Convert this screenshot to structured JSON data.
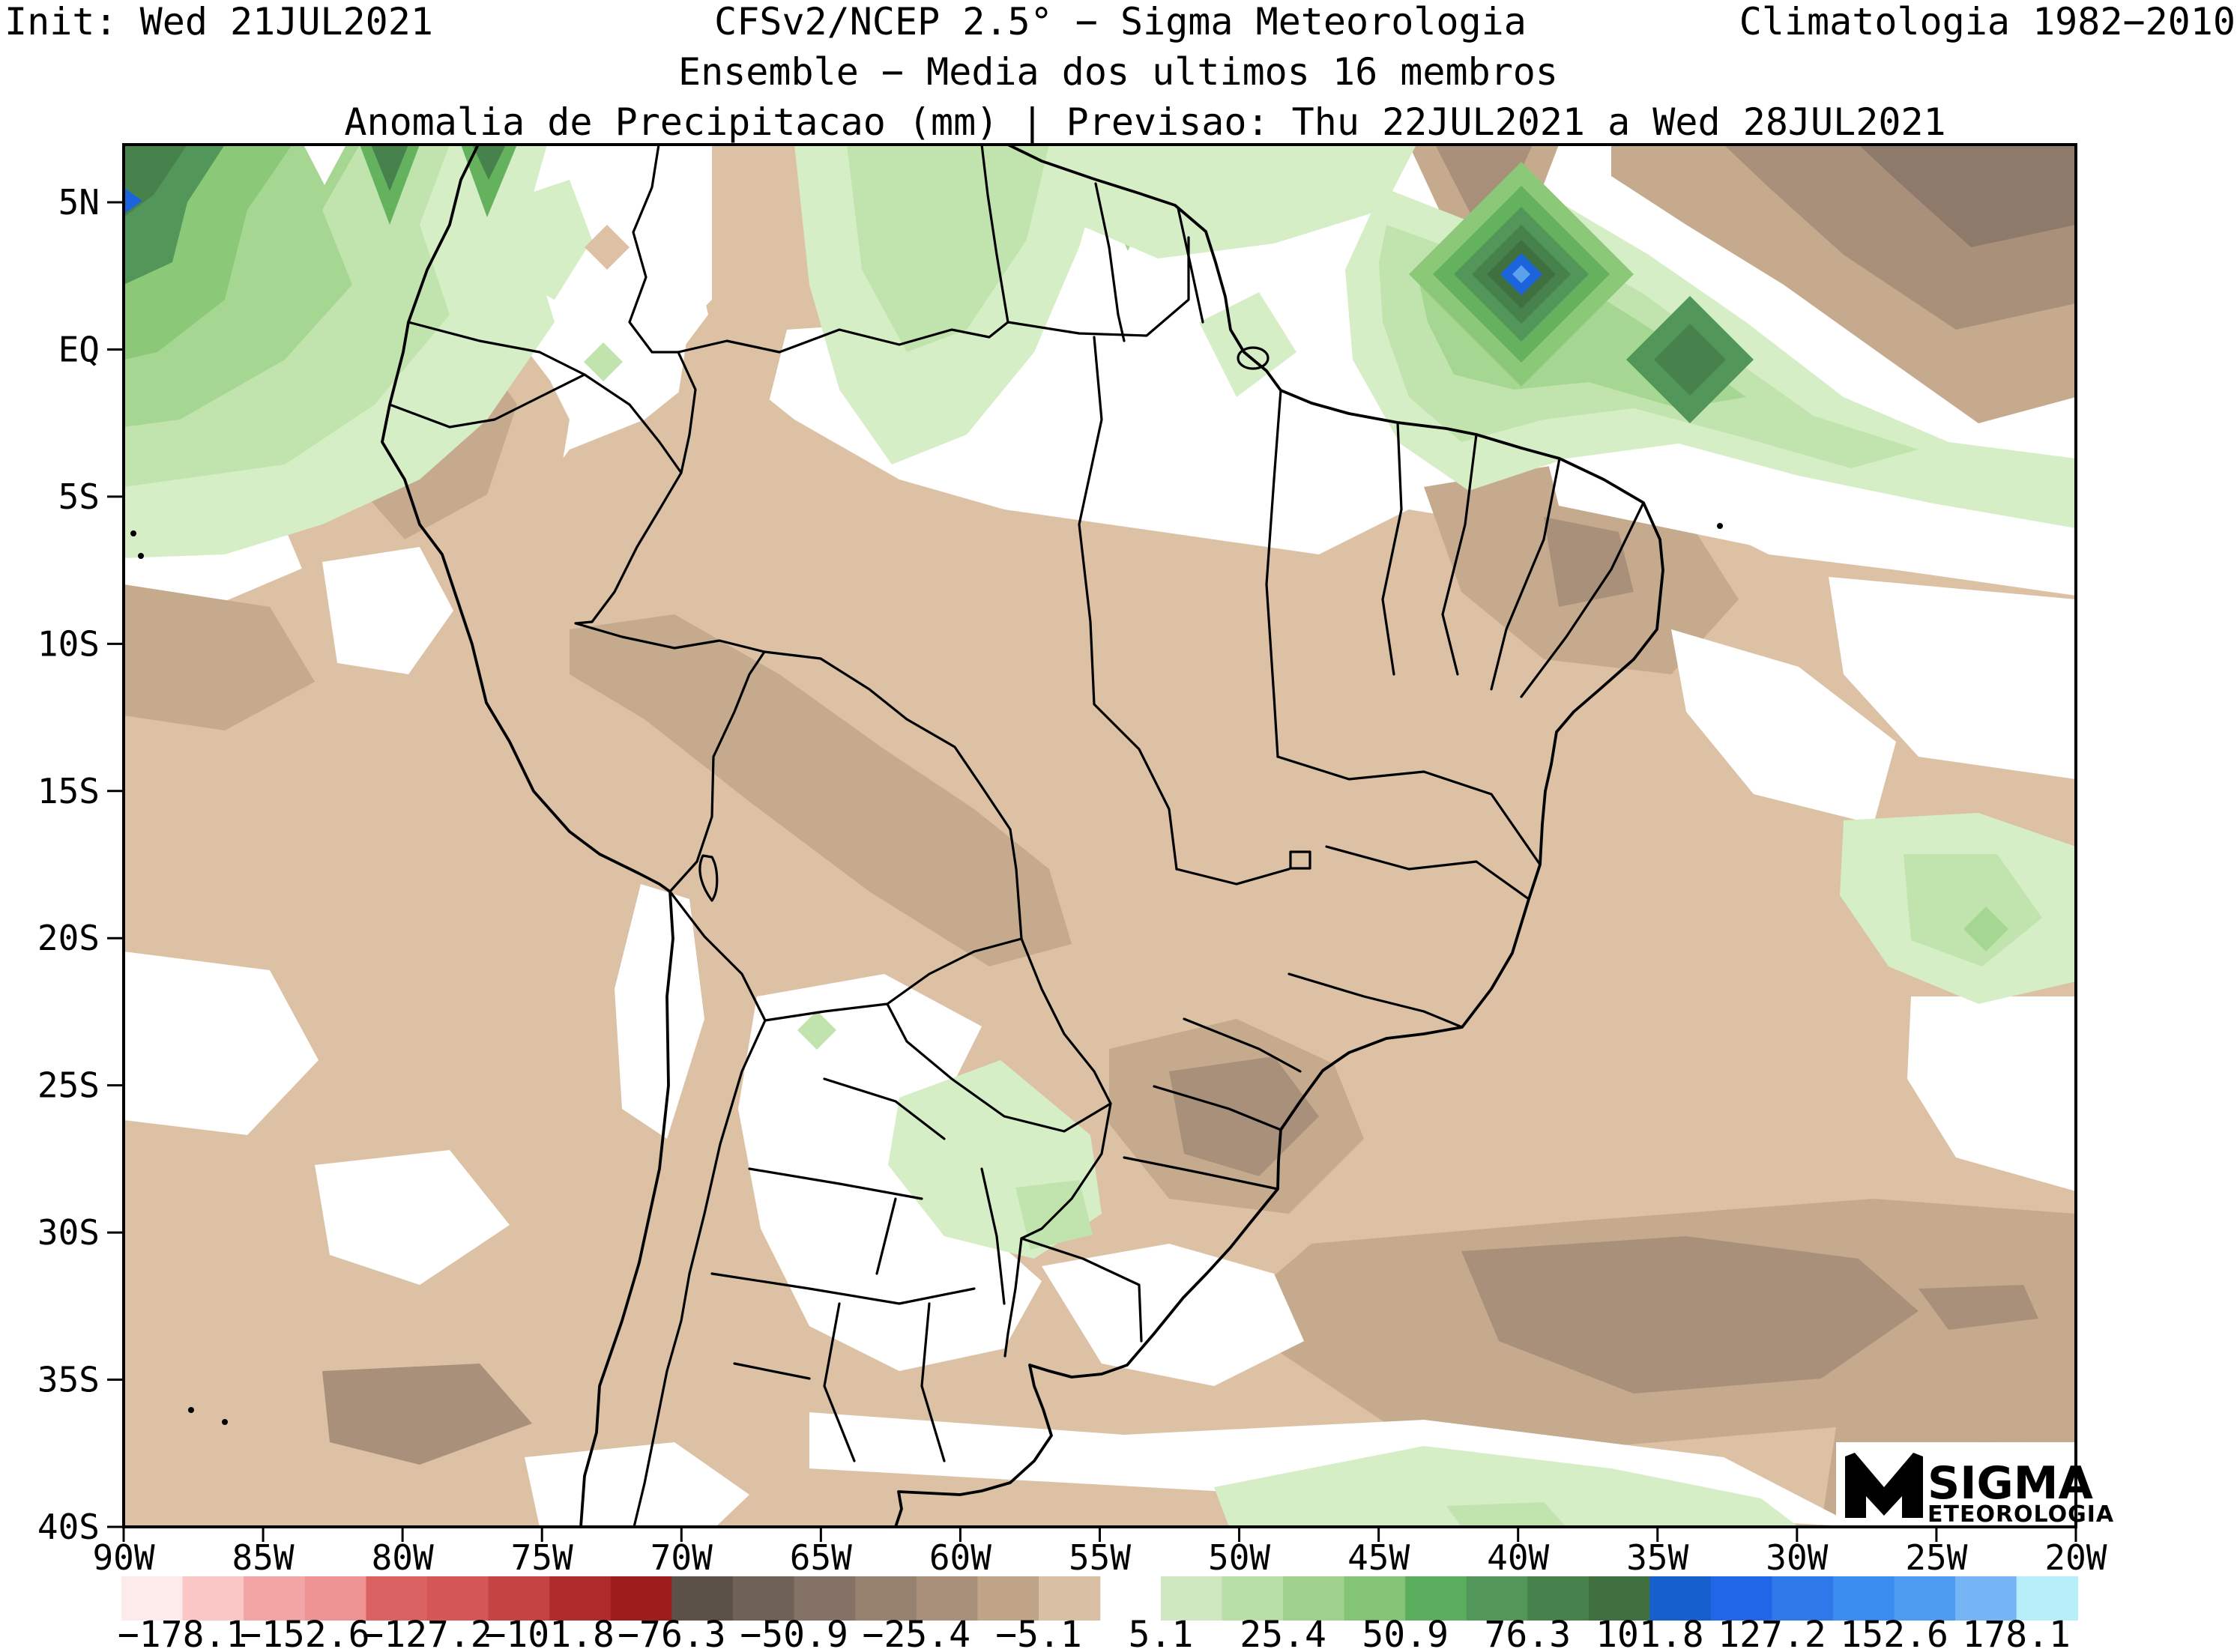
{
  "header": {
    "init_label": "Init: Wed 21JUL2021",
    "model_label": "CFSv2/NCEP 2.5° − Sigma Meteorologia",
    "climatology_label": "Climatologia 1982−2010",
    "ensemble_label": "Ensemble − Media dos ultimos 16 membros",
    "variable_label": "Anomalia de Precipitacao (mm) | Previsao: Thu 22JUL2021 a Wed 28JUL2021"
  },
  "axes": {
    "lat_ticks": [
      "5N",
      "EQ",
      "5S",
      "10S",
      "15S",
      "20S",
      "25S",
      "30S",
      "35S",
      "40S"
    ],
    "lon_ticks": [
      "90W",
      "85W",
      "80W",
      "75W",
      "70W",
      "65W",
      "60W",
      "55W",
      "50W",
      "45W",
      "40W",
      "35W",
      "30W",
      "25W",
      "20W"
    ]
  },
  "colorbar": {
    "units": "mm",
    "negative": {
      "segment_colors": [
        "#fdeaea",
        "#fbc6c6",
        "#f3a4a4",
        "#ee9393",
        "#db6262",
        "#d45656",
        "#c64343",
        "#b02b2b",
        "#9d1d1d",
        "#5c5148",
        "#6f6156",
        "#837265",
        "#97816f",
        "#a8907b",
        "#c0a488",
        "#d9bfa3"
      ],
      "edge_labels": [
        "−178.1",
        "−152.6",
        "−127.2",
        "−101.8",
        "−76.3",
        "−50.9",
        "−25.4",
        "−5.1"
      ]
    },
    "positive": {
      "segment_colors": [
        "#cfe8c0",
        "#b9dfa8",
        "#9fd18c",
        "#84c476",
        "#5bae5e",
        "#529659",
        "#47824c",
        "#40703f",
        "#1560cd",
        "#2066e6",
        "#2e79ea",
        "#3c8df0",
        "#4d9cf2",
        "#76b5f5",
        "#b6eff9"
      ],
      "edge_labels": [
        "5.1",
        "25.4",
        "50.9",
        "76.3",
        "101.8",
        "127.2",
        "152.6",
        "178.1"
      ]
    }
  },
  "logo": {
    "monogram": "M",
    "line1": "SIGMA",
    "line2": "ETEOROLOGIA"
  },
  "palette": {
    "tan_light": "#dcc1a5",
    "tan_mid": "#c5aa8e",
    "brown_gray": "#a8907b",
    "brown_dark": "#8d7a6a",
    "green_0": "#d6eec6",
    "green_1": "#c1e4ae",
    "green_2": "#a6d792",
    "green_3": "#8bc878",
    "green_4": "#64b25e",
    "green_5": "#529659",
    "green_6": "#47824c",
    "green_7": "#3f7040",
    "blue_core": "#1b64dc",
    "blue_light": "#5aa2f0",
    "frame": "#000000"
  }
}
